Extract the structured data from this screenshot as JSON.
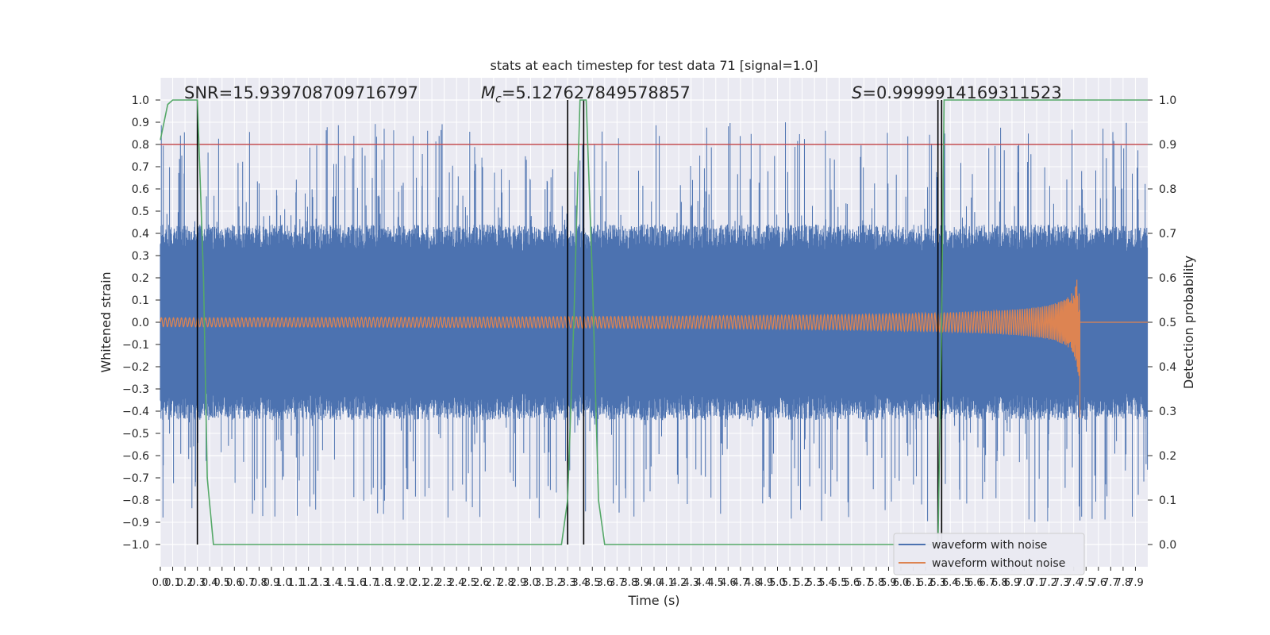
{
  "chart_data": {
    "type": "line",
    "title": "stats at each timestep for test data 71 [signal=1.0]",
    "xlabel": "Time (s)",
    "ylabel": "Whitened strain",
    "y2label": "Detection probability",
    "xlim": [
      0.0,
      8.0
    ],
    "ylim": [
      -1.1,
      1.1
    ],
    "y2lim": [
      -0.05,
      1.05
    ],
    "grid": true,
    "legend_position": "bottom-right",
    "annotations": {
      "snr": "SNR=15.939708709716797",
      "mc_symbol": "M",
      "mc_sub": "c",
      "mc_value": "=5.127627849578857",
      "s_symbol": "S",
      "s_value": "=0.9999914169311523"
    },
    "x_tick_labels": [
      "0.0",
      "0.1",
      "0.2",
      "0.3",
      "0.4",
      "0.5",
      "0.6",
      "0.7",
      "0.8",
      "0.9",
      "1.0",
      "1.1",
      "1.2",
      "1.3",
      "1.4",
      "1.5",
      "1.6",
      "1.7",
      "1.8",
      "1.9",
      "2.0",
      "2.1",
      "2.2",
      "2.3",
      "2.4",
      "2.5",
      "2.6",
      "2.7",
      "2.8",
      "2.9",
      "3.0",
      "3.1",
      "3.2",
      "3.3",
      "3.4",
      "3.5",
      "3.6",
      "3.7",
      "3.8",
      "3.9",
      "4.0",
      "4.1",
      "4.2",
      "4.3",
      "4.4",
      "4.5",
      "4.6",
      "4.7",
      "4.8",
      "4.9",
      "5.0",
      "5.1",
      "5.2",
      "5.3",
      "5.4",
      "5.5",
      "5.6",
      "5.7",
      "5.8",
      "5.9",
      "6.0",
      "6.1",
      "6.2",
      "6.3",
      "6.4",
      "6.5",
      "6.6",
      "6.7",
      "6.8",
      "6.9",
      "7.0",
      "7.1",
      "7.2",
      "7.3",
      "7.4",
      "7.5",
      "7.6",
      "7.7",
      "7.8",
      "7.9"
    ],
    "y_tick_labels": [
      "−1.0",
      "−0.9",
      "−0.8",
      "−0.7",
      "−0.6",
      "−0.5",
      "−0.4",
      "−0.3",
      "−0.2",
      "−0.1",
      "0.0",
      "0.1",
      "0.2",
      "0.3",
      "0.4",
      "0.5",
      "0.6",
      "0.7",
      "0.8",
      "0.9",
      "1.0"
    ],
    "y_ticks": [
      -1.0,
      -0.9,
      -0.8,
      -0.7,
      -0.6,
      -0.5,
      -0.4,
      -0.3,
      -0.2,
      -0.1,
      0.0,
      0.1,
      0.2,
      0.3,
      0.4,
      0.5,
      0.6,
      0.7,
      0.8,
      0.9,
      1.0
    ],
    "y2_tick_labels": [
      "0.0",
      "0.1",
      "0.2",
      "0.3",
      "0.4",
      "0.5",
      "0.6",
      "0.7",
      "0.8",
      "0.9",
      "1.0"
    ],
    "y2_ticks": [
      0.0,
      0.1,
      0.2,
      0.3,
      0.4,
      0.5,
      0.6,
      0.7,
      0.8,
      0.9,
      1.0
    ],
    "threshold": {
      "value": 0.9,
      "axis": "y2",
      "color": "#c44e52"
    },
    "vertical_lines": [
      0.3,
      3.3,
      3.43,
      6.3,
      6.33
    ],
    "series": [
      {
        "name": "waveform with noise",
        "color": "#4c72b0",
        "note": "dense noise band, bulk approx within ±0.45 with peaks near ±0.95"
      },
      {
        "name": "waveform without noise",
        "color": "#dd8452",
        "note": "chirp, amplitude ~0.02 rising to ~0.43 peak at t≈7.45 s then zero"
      },
      {
        "name": "detection probability",
        "color": "#55a868",
        "axis": "y2",
        "x": [
          0.0,
          0.06,
          0.1,
          0.2,
          0.3,
          0.35,
          0.38,
          0.43,
          0.5,
          3.1,
          3.25,
          3.3,
          3.35,
          3.4,
          3.45,
          3.5,
          3.55,
          3.6,
          3.65,
          6.2,
          6.28,
          6.3,
          6.33,
          6.35,
          6.4,
          7.0,
          8.0
        ],
        "y": [
          0.91,
          0.99,
          1.0,
          1.0,
          1.0,
          0.6,
          0.15,
          0.0,
          0.0,
          0.0,
          0.0,
          0.1,
          0.5,
          1.0,
          1.0,
          0.6,
          0.1,
          0.0,
          0.0,
          0.0,
          0.0,
          0.0,
          0.5,
          1.0,
          1.0,
          1.0,
          1.0
        ]
      }
    ],
    "legend_entries": [
      "waveform with noise",
      "waveform without noise"
    ]
  }
}
